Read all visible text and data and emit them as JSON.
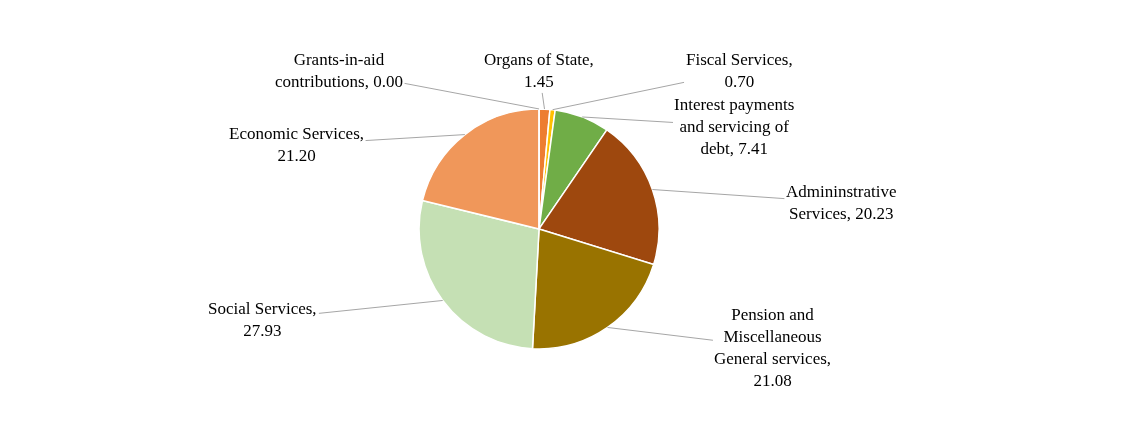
{
  "chart_data": {
    "type": "pie",
    "categories": [
      "Organs of State, 1.45",
      "Fiscal Services, 0.70",
      "Interest payments and servicing of debt, 7.41",
      "Admininstrative Services, 20.23",
      "Pension and Miscellaneous General services, 21.08",
      "Social Services, 27.93",
      "Economic Services, 21.20",
      "Grants-in-aid contributions, 0.00"
    ],
    "values": [
      1.45,
      0.7,
      7.41,
      20.23,
      21.08,
      27.93,
      21.2,
      0.0
    ],
    "colors": [
      "#ed7d31",
      "#ffc000",
      "#70ad47",
      "#9e480e",
      "#997300",
      "#c5e0b4",
      "#f0975a",
      "#a5a5a5"
    ],
    "legend": false
  }
}
